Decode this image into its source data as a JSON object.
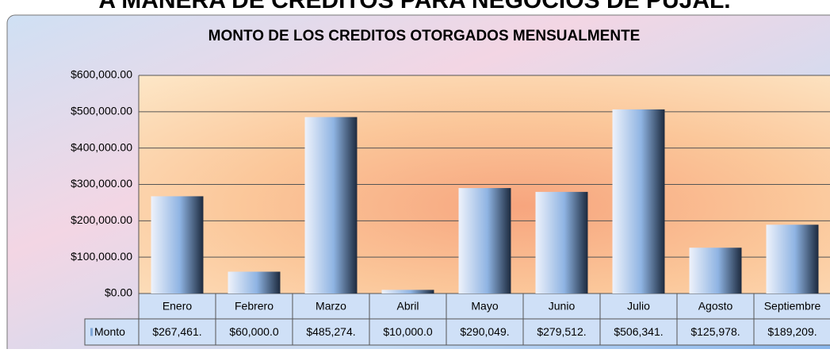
{
  "header": {
    "title": "A MANERA DE CREDITOS PARA NEGOCIOS DE PUJAL."
  },
  "chart_data": {
    "type": "bar",
    "title": "MONTO DE LOS CREDITOS OTORGADOS MENSUALMENTE",
    "categories": [
      "Enero",
      "Febrero",
      "Marzo",
      "Abril",
      "Mayo",
      "Junio",
      "Julio",
      "Agosto",
      "Septiembre"
    ],
    "series": [
      {
        "name": "Monto",
        "color": "#7fa6d6",
        "values": [
          267461,
          60000,
          485274,
          10000,
          290049,
          279512,
          506341,
          125978,
          189209
        ],
        "value_labels": [
          "$267,461.",
          "$60,000.0",
          "$485,274.",
          "$10,000.0",
          "$290,049.",
          "$279,512.",
          "$506,341.",
          "$125,978.",
          "$189,209."
        ]
      }
    ],
    "ylim": [
      0,
      600000
    ],
    "yticks": [
      {
        "value": 0,
        "label": "$0.00"
      },
      {
        "value": 100000,
        "label": "$100,000.00"
      },
      {
        "value": 200000,
        "label": "$200,000.00"
      },
      {
        "value": 300000,
        "label": "$300,000.00"
      },
      {
        "value": 400000,
        "label": "$400,000.00"
      },
      {
        "value": 500000,
        "label": "$500,000.00"
      },
      {
        "value": 600000,
        "label": "$600,000.00"
      }
    ],
    "grid": true
  }
}
